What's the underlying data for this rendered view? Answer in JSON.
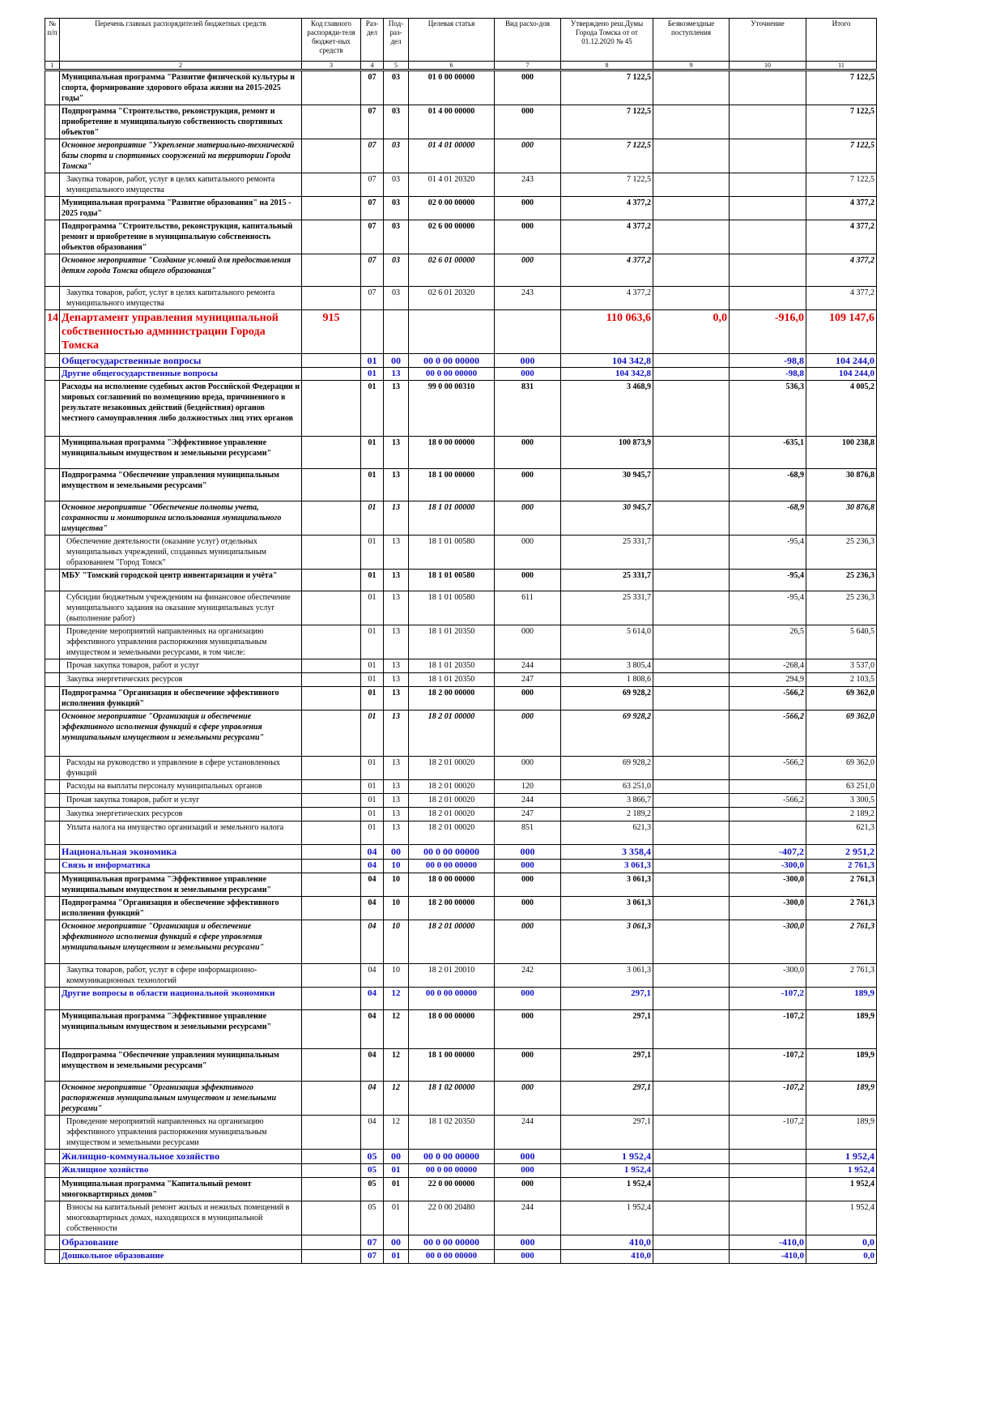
{
  "table": {
    "header": [
      "№ п/п",
      "Перечень главных распорядителей бюджетных средств",
      "Код главного распоряди-теля бюджет-ных средств",
      "Раз-дел",
      "Под-раз-дел",
      "Целевая статья",
      "Вид расхо-дов",
      "Утверждено реш.Думы Города Томска от от 01.12.2020 № 45",
      "Безвозмездные поступления",
      "Уточнение",
      "Итого"
    ],
    "column_numbers": [
      "1",
      "2",
      "3",
      "4",
      "5",
      "6",
      "7",
      "8",
      "9",
      "10",
      "11"
    ],
    "rows": [
      [
        null,
        "Муниципальная программа \"Развитие физической культуры и спорта, формирование здорового образа жизни на 2015-2025 годы\"",
        null,
        "07",
        "03",
        "01 0 00 00000",
        "000",
        "7 122,5",
        null,
        null,
        "7 122,5"
      ],
      [
        null,
        "Подпрограмма \"Строительство, реконструкция, ремонт и приобретение в муниципальную собственность спортивных объектов\"",
        null,
        "07",
        "03",
        "01 4 00 00000",
        "000",
        "7 122,5",
        null,
        null,
        "7 122,5"
      ],
      [
        null,
        "Основное мероприятие \"Укрепление материально-технической базы спорта и спортивных сооружений на территории Города Томска\"",
        null,
        "07",
        "03",
        "01 4 01 00000",
        "000",
        "7 122,5",
        null,
        null,
        "7 122,5"
      ],
      [
        null,
        "Закупка товаров, работ, услуг в целях капитального ремонта муниципального имущества",
        null,
        "07",
        "03",
        "01 4 01 20320",
        "243",
        "7 122,5",
        null,
        null,
        "7 122,5"
      ],
      [
        null,
        "Муниципальная программа \"Развитие образования\" на 2015 - 2025 годы\"",
        null,
        "07",
        "03",
        "02 0 00 00000",
        "000",
        "4 377,2",
        null,
        null,
        "4 377,2"
      ],
      [
        null,
        "Подпрограмма \"Строительство, реконструкция, капитальный ремонт и приобретение в муниципальную собственность объектов образования\"",
        null,
        "07",
        "03",
        "02 6 00 00000",
        "000",
        "4 377,2",
        null,
        null,
        "4 377,2"
      ],
      [
        null,
        "Основное мероприятие \"Создание условий для предоставления детям города Томска общего образования\"",
        null,
        "07",
        "03",
        "02 6 01 00000",
        "000",
        "4 377,2",
        null,
        null,
        "4 377,2"
      ],
      [
        null,
        "Закупка товаров, работ, услуг в целях капитального ремонта муниципального имущества",
        null,
        "07",
        "03",
        "02 6 01 20320",
        "243",
        "4 377,2",
        null,
        null,
        "4 377,2"
      ],
      [
        "14",
        "Департамент управления муниципальной собственностью администрации Города Томска",
        "915",
        null,
        null,
        null,
        null,
        "110 063,6",
        "0,0",
        "-916,0",
        "109 147,6"
      ],
      [
        null,
        "Общегосударственные вопросы",
        null,
        "01",
        "00",
        "00 0 00 00000",
        "000",
        "104 342,8",
        null,
        "-98,8",
        "104 244,0"
      ],
      [
        null,
        "Другие общегосударственные вопросы",
        null,
        "01",
        "13",
        "00 0 00 00000",
        "000",
        "104 342,8",
        null,
        "-98,8",
        "104 244,0"
      ],
      [
        null,
        "Расходы на исполнение судебных актов Российской Федерации и мировых соглашений по возмещению вреда, причиненного в результате незаконных действий (бездействия) органов местного самоуправления либо должностных лиц этих органов",
        null,
        "01",
        "13",
        "99 0 00 00310",
        "831",
        "3 468,9",
        null,
        "536,3",
        "4 005,2"
      ],
      [
        null,
        "Муниципальная программа \"Эффективное управление муниципальным имуществом и земельными ресурсами\"",
        null,
        "01",
        "13",
        "18 0 00 00000",
        "000",
        "100 873,9",
        null,
        "-635,1",
        "100 238,8"
      ],
      [
        null,
        "Подпрограмма \"Обеспечение управления муниципальным имуществом и земельными ресурсами\"",
        null,
        "01",
        "13",
        "18 1 00 00000",
        "000",
        "30 945,7",
        null,
        "-68,9",
        "30 876,8"
      ],
      [
        null,
        "Основное мероприятие \"Обеспечение полноты учета, сохранности и мониторинга использования муниципального имущества\"",
        null,
        "01",
        "13",
        "18 1 01 00000",
        "000",
        "30 945,7",
        null,
        "-68,9",
        "30 876,8"
      ],
      [
        null,
        "Обеспечение деятельности (оказание услуг) отдельных муниципальных учреждений, созданных муниципальным образованием \"Город Томск\"",
        null,
        "01",
        "13",
        "18 1 01 00580",
        "000",
        "25 331,7",
        null,
        "-95,4",
        "25 236,3"
      ],
      [
        null,
        "МБУ \"Томский городской центр инвентаризации и учёта\"",
        null,
        "01",
        "13",
        "18 1 01 00580",
        "000",
        "25 331,7",
        null,
        "-95,4",
        "25 236,3"
      ],
      [
        null,
        "Субсидии бюджетным учреждениям на финансовое обеспечение муниципального задания на оказание муниципальных услуг (выполнение работ)",
        null,
        "01",
        "13",
        "18 1 01 00580",
        "611",
        "25 331,7",
        null,
        "-95,4",
        "25 236,3"
      ],
      [
        null,
        "Проведение мероприятий направленных на организацию эффективного управления распоряжения муниципальным имуществом и земельными ресурсами, в том числе:",
        null,
        "01",
        "13",
        "18 1 01 20350",
        "000",
        "5 614,0",
        null,
        "26,5",
        "5 640,5"
      ],
      [
        null,
        "Прочая закупка товаров, работ и услуг",
        null,
        "01",
        "13",
        "18 1 01 20350",
        "244",
        "3 805,4",
        null,
        "-268,4",
        "3 537,0"
      ],
      [
        null,
        "Закупка энергетических ресурсов",
        null,
        "01",
        "13",
        "18 1 01 20350",
        "247",
        "1 808,6",
        null,
        "294,9",
        "2 103,5"
      ],
      [
        null,
        "Подпрограмма \"Организация и обеспечение эффективного исполнения функций\"",
        null,
        "01",
        "13",
        "18 2 00 00000",
        "000",
        "69 928,2",
        null,
        "-566,2",
        "69 362,0"
      ],
      [
        null,
        "Основное мероприятие \"Организация и обеспечение эффективного исполнения функций в сфере управления муниципальным имуществом и земельными ресурсами\"",
        null,
        "01",
        "13",
        "18 2 01 00000",
        "000",
        "69 928,2",
        null,
        "-566,2",
        "69 362,0"
      ],
      [
        null,
        "Расходы на руководство и управление в сфере установленных функций",
        null,
        "01",
        "13",
        "18 2 01 00020",
        "000",
        "69 928,2",
        null,
        "-566,2",
        "69 362,0"
      ],
      [
        null,
        "Расходы на выплаты персоналу муниципальных органов",
        null,
        "01",
        "13",
        "18 2 01 00020",
        "120",
        "63 251,0",
        null,
        null,
        "63 251,0"
      ],
      [
        null,
        "Прочая закупка товаров, работ и услуг",
        null,
        "01",
        "13",
        "18 2 01 00020",
        "244",
        "3 866,7",
        null,
        "-566,2",
        "3 300,5"
      ],
      [
        null,
        "Закупка энергетических ресурсов",
        null,
        "01",
        "13",
        "18 2 01 00020",
        "247",
        "2 189,2",
        null,
        null,
        "2 189,2"
      ],
      [
        null,
        "Уплата налога на имущество организаций и земельного налога",
        null,
        "01",
        "13",
        "18 2 01 00020",
        "851",
        "621,3",
        null,
        null,
        "621,3"
      ],
      [
        null,
        "Национальная экономика",
        null,
        "04",
        "00",
        "00 0 00 00000",
        "000",
        "3 358,4",
        null,
        "-407,2",
        "2 951,2"
      ],
      [
        null,
        "Связь и информатика",
        null,
        "04",
        "10",
        "00 0 00 00000",
        "000",
        "3 061,3",
        null,
        "-300,0",
        "2 761,3"
      ],
      [
        null,
        "Муниципальная программа \"Эффективное управление муниципальным имуществом и земельными ресурсами\"",
        null,
        "04",
        "10",
        "18 0 00 00000",
        "000",
        "3 061,3",
        null,
        "-300,0",
        "2 761,3"
      ],
      [
        null,
        "Подпрограмма \"Организация и обеспечение эффективного исполнения функций\"",
        null,
        "04",
        "10",
        "18 2 00 00000",
        "000",
        "3 061,3",
        null,
        "-300,0",
        "2 761,3"
      ],
      [
        null,
        "Основное мероприятие \"Организация и обеспечение эффективного исполнения функций в сфере управления муниципальным имуществом и земельными ресурсами\"",
        null,
        "04",
        "10",
        "18 2 01 00000",
        "000",
        "3 061,3",
        null,
        "-300,0",
        "2 761,3"
      ],
      [
        null,
        "Закупка товаров, работ, услуг в сфере информационно-коммуникационных технологий",
        null,
        "04",
        "10",
        "18 2 01 20010",
        "242",
        "3 061,3",
        null,
        "-300,0",
        "2 761,3"
      ],
      [
        null,
        "Другие вопросы в области национальной экономики",
        null,
        "04",
        "12",
        "00 0 00 00000",
        "000",
        "297,1",
        null,
        "-107,2",
        "189,9"
      ],
      [
        null,
        "Муниципальная программа \"Эффективное управление муниципальным имуществом и земельными ресурсами\"",
        null,
        "04",
        "12",
        "18 0 00 00000",
        "000",
        "297,1",
        null,
        "-107,2",
        "189,9"
      ],
      [
        null,
        "Подпрограмма \"Обеспечение управления муниципальным имуществом и земельными ресурсами\"",
        null,
        "04",
        "12",
        "18 1 00 00000",
        "000",
        "297,1",
        null,
        "-107,2",
        "189,9"
      ],
      [
        null,
        "Основное мероприятие \"Организация эффективного распоряжения муниципальным имуществом и земельными ресурсами\"",
        null,
        "04",
        "12",
        "18 1 02 00000",
        "000",
        "297,1",
        null,
        "-107,2",
        "189,9"
      ],
      [
        null,
        "Проведение мероприятий направленных на организацию эффективного управления распоряжения муниципальным имуществом и земельными ресурсами",
        null,
        "04",
        "12",
        "18 1 02 20350",
        "244",
        "297,1",
        null,
        "-107,2",
        "189,9"
      ],
      [
        null,
        "Жилищно-коммунальное хозяйство",
        null,
        "05",
        "00",
        "00 0 00 00000",
        "000",
        "1 952,4",
        null,
        null,
        "1 952,4"
      ],
      [
        null,
        "Жилищное хозяйство",
        null,
        "05",
        "01",
        "00 0 00 00000",
        "000",
        "1 952,4",
        null,
        null,
        "1 952,4"
      ],
      [
        null,
        "Муниципальная программа \"Капитальный ремонт многоквартирных домов\"",
        null,
        "05",
        "01",
        "22 0 00 00000",
        "000",
        "1 952,4",
        null,
        null,
        "1 952,4"
      ],
      [
        null,
        "Взносы на капитальный ремонт жилых и нежилых помещений в многоквартирных домах, находящихся в муниципальной собственности",
        null,
        "05",
        "01",
        "22 0 00 20480",
        "244",
        "1 952,4",
        null,
        null,
        "1 952,4"
      ],
      [
        null,
        "Образование",
        null,
        "07",
        "00",
        "00 0 00 00000",
        "000",
        "410,0",
        null,
        "-410,0",
        "0,0"
      ],
      [
        null,
        "Дошкольное образование",
        null,
        "07",
        "01",
        "00 0 00 00000",
        "000",
        "410,0",
        null,
        "-410,0",
        "0,0"
      ]
    ]
  }
}
